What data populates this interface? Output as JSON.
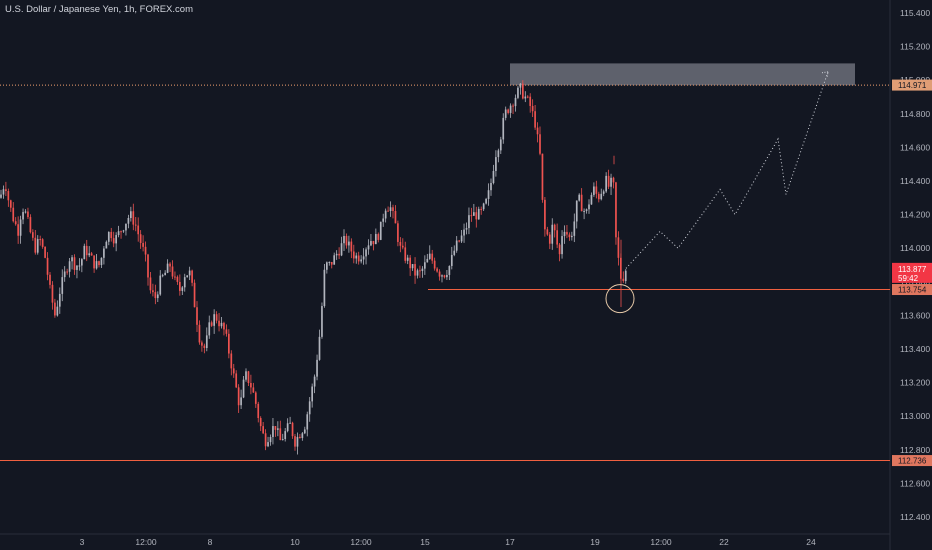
{
  "legend": {
    "symbol_title": "U.S. Dollar / Japanese Yen, 1h, FOREX.com"
  },
  "colors": {
    "background": "#131722",
    "up": "#b2b5be",
    "down": "#ef5350",
    "support_line": "#f06040",
    "resistance_line": "#f0a070",
    "zone_fill": "#787b86",
    "projection": "#d1d4dc",
    "last_price_badge": "#f23645",
    "resistance_badge": "#e09d75",
    "support_badge": "#e0775f"
  },
  "chart_data": {
    "type": "candlestick",
    "title": "U.S. Dollar / Japanese Yen, 1h, FOREX.com",
    "ylim": [
      112.3,
      115.5
    ],
    "y_ticks": [
      115.4,
      115.2,
      115.0,
      114.8,
      114.6,
      114.4,
      114.2,
      114.0,
      113.8,
      113.6,
      113.4,
      113.2,
      113.0,
      112.8,
      112.6,
      112.4
    ],
    "y_tick_labels": [
      "115.400",
      "115.200",
      "115.000",
      "114.800",
      "114.600",
      "114.400",
      "114.200",
      "114.000",
      "113.800",
      "113.600",
      "113.400",
      "113.200",
      "113.000",
      "112.800",
      "112.600",
      "112.400"
    ],
    "x_tick_labels": [
      "3",
      "12:00",
      "8",
      "10",
      "12:00",
      "15",
      "17",
      "19",
      "12:00",
      "22",
      "24"
    ],
    "price_path": [
      [
        0,
        114.3
      ],
      [
        5,
        114.4
      ],
      [
        8,
        114.3
      ],
      [
        12,
        114.2
      ],
      [
        18,
        114.1
      ],
      [
        22,
        114.25
      ],
      [
        26,
        114.2
      ],
      [
        30,
        114.1
      ],
      [
        35,
        114.0
      ],
      [
        40,
        114.05
      ],
      [
        45,
        113.95
      ],
      [
        50,
        113.75
      ],
      [
        55,
        113.6
      ],
      [
        60,
        113.75
      ],
      [
        65,
        113.85
      ],
      [
        70,
        113.95
      ],
      [
        75,
        113.9
      ],
      [
        80,
        113.9
      ],
      [
        85,
        114.0
      ],
      [
        90,
        113.95
      ],
      [
        95,
        113.9
      ],
      [
        100,
        113.9
      ],
      [
        105,
        114.05
      ],
      [
        110,
        114.1
      ],
      [
        115,
        114.05
      ],
      [
        120,
        114.1
      ],
      [
        125,
        114.15
      ],
      [
        130,
        114.2
      ],
      [
        135,
        114.15
      ],
      [
        140,
        114.05
      ],
      [
        145,
        113.95
      ],
      [
        150,
        113.75
      ],
      [
        155,
        113.7
      ],
      [
        160,
        113.8
      ],
      [
        165,
        113.85
      ],
      [
        170,
        113.9
      ],
      [
        175,
        113.8
      ],
      [
        180,
        113.75
      ],
      [
        185,
        113.85
      ],
      [
        190,
        113.85
      ],
      [
        195,
        113.65
      ],
      [
        200,
        113.45
      ],
      [
        205,
        113.4
      ],
      [
        210,
        113.55
      ],
      [
        215,
        113.6
      ],
      [
        220,
        113.55
      ],
      [
        225,
        113.5
      ],
      [
        230,
        113.35
      ],
      [
        235,
        113.2
      ],
      [
        240,
        113.05
      ],
      [
        245,
        113.25
      ],
      [
        250,
        113.2
      ],
      [
        255,
        113.1
      ],
      [
        260,
        112.95
      ],
      [
        265,
        112.85
      ],
      [
        270,
        112.9
      ],
      [
        275,
        112.95
      ],
      [
        280,
        112.85
      ],
      [
        285,
        112.9
      ],
      [
        290,
        112.95
      ],
      [
        295,
        112.85
      ],
      [
        300,
        112.9
      ],
      [
        305,
        112.95
      ],
      [
        310,
        113.1
      ],
      [
        315,
        113.25
      ],
      [
        320,
        113.5
      ],
      [
        325,
        113.9
      ],
      [
        330,
        113.9
      ],
      [
        335,
        113.95
      ],
      [
        340,
        114.0
      ],
      [
        345,
        114.05
      ],
      [
        350,
        114.0
      ],
      [
        355,
        113.95
      ],
      [
        360,
        113.95
      ],
      [
        365,
        114.0
      ],
      [
        370,
        114.05
      ],
      [
        375,
        114.05
      ],
      [
        380,
        114.1
      ],
      [
        385,
        114.25
      ],
      [
        390,
        114.25
      ],
      [
        395,
        114.15
      ],
      [
        400,
        114.0
      ],
      [
        405,
        113.95
      ],
      [
        410,
        113.9
      ],
      [
        415,
        113.85
      ],
      [
        420,
        113.85
      ],
      [
        425,
        113.9
      ],
      [
        430,
        113.95
      ],
      [
        435,
        113.9
      ],
      [
        440,
        113.85
      ],
      [
        445,
        113.85
      ],
      [
        450,
        113.9
      ],
      [
        455,
        114.0
      ],
      [
        460,
        114.05
      ],
      [
        465,
        114.1
      ],
      [
        470,
        114.2
      ],
      [
        475,
        114.2
      ],
      [
        480,
        114.2
      ],
      [
        485,
        114.25
      ],
      [
        490,
        114.35
      ],
      [
        495,
        114.55
      ],
      [
        500,
        114.65
      ],
      [
        505,
        114.8
      ],
      [
        510,
        114.85
      ],
      [
        515,
        114.9
      ],
      [
        520,
        114.95
      ],
      [
        525,
        114.9
      ],
      [
        530,
        114.85
      ],
      [
        535,
        114.75
      ],
      [
        540,
        114.55
      ],
      [
        542,
        114.3
      ],
      [
        545,
        114.1
      ],
      [
        550,
        114.05
      ],
      [
        553,
        114.15
      ],
      [
        556,
        114.05
      ],
      [
        560,
        113.95
      ],
      [
        563,
        114.15
      ],
      [
        566,
        114.1
      ],
      [
        570,
        114.05
      ],
      [
        574,
        114.15
      ],
      [
        578,
        114.3
      ],
      [
        582,
        114.25
      ],
      [
        586,
        114.2
      ],
      [
        590,
        114.3
      ],
      [
        594,
        114.35
      ],
      [
        598,
        114.3
      ],
      [
        602,
        114.35
      ],
      [
        606,
        114.4
      ],
      [
        610,
        114.35
      ],
      [
        613,
        114.45
      ],
      [
        615,
        114.1
      ],
      [
        618,
        113.95
      ],
      [
        620,
        113.85
      ],
      [
        622,
        113.8
      ],
      [
        624,
        113.85
      ],
      [
        626,
        113.88
      ]
    ],
    "resistance": 114.971,
    "support": 113.754,
    "low": 112.736,
    "resistance_zone": {
      "x_from": 510,
      "x_to": 855,
      "y_from": 114.97,
      "y_to": 115.1
    },
    "projection_path": [
      [
        626,
        113.88
      ],
      [
        660,
        114.1
      ],
      [
        678,
        114.0
      ],
      [
        720,
        114.35
      ],
      [
        735,
        114.2
      ],
      [
        778,
        114.65
      ],
      [
        786,
        114.32
      ],
      [
        828,
        115.05
      ]
    ],
    "circle": {
      "x": 620,
      "y": 113.7
    },
    "last_price": {
      "value": "113.877",
      "countdown": "59:42"
    },
    "price_badges": {
      "resistance": "114.971",
      "support": "113.754",
      "low": "112.736"
    }
  }
}
